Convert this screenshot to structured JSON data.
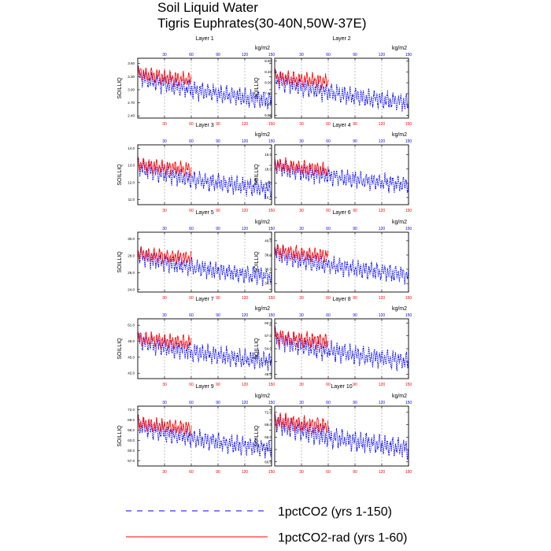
{
  "title": "Soil Liquid Water",
  "subtitle": "Tigris Euphrates(30-40N,50W-37E)",
  "legend": [
    {
      "label": "1pctCO2 (yrs 1-150)",
      "color": "#0000ff",
      "style": "dashed"
    },
    {
      "label": "1pctCO2-rad (yrs 1-60)",
      "color": "#ff0000",
      "style": "solid"
    }
  ],
  "colors": {
    "series_a": "#0000ff",
    "series_b": "#ff0000",
    "grid": "#999999"
  },
  "chart_data": {
    "type": "line",
    "ylabel": "SOILLIQ",
    "units": "kg/m2",
    "x_ticks_top": [
      "30",
      "60",
      "90",
      "120",
      "150"
    ],
    "x_ticks_bottom": [
      "30",
      "60",
      "90",
      "120",
      "150"
    ],
    "xlim": [
      0,
      150
    ],
    "panels": [
      {
        "title": "Layer 1",
        "yticks": [
          "2.40",
          "2.70",
          "3.00",
          "3.30",
          "3.60"
        ],
        "ylim": [
          2.35,
          3.72
        ],
        "series": [
          {
            "label_ref": 0,
            "start": 3.35,
            "end": 2.75,
            "amp": 0.22
          },
          {
            "label_ref": 1,
            "start": 3.4,
            "end": 3.1,
            "amp": 0.18
          }
        ]
      },
      {
        "title": "Layer 2",
        "yticks": [
          "6.80",
          "7.20",
          "7.60",
          "8.00",
          "8.40",
          "8.80"
        ],
        "ylim": [
          6.7,
          8.9
        ],
        "series": [
          {
            "label_ref": 0,
            "start": 8.2,
            "end": 7.25,
            "amp": 0.35
          },
          {
            "label_ref": 1,
            "start": 8.25,
            "end": 7.9,
            "amp": 0.28
          }
        ]
      },
      {
        "title": "Layer 3",
        "yticks": [
          "11.0",
          "12.0",
          "13.0",
          "14.0"
        ],
        "ylim": [
          10.7,
          14.2
        ],
        "series": [
          {
            "label_ref": 0,
            "start": 13.0,
            "end": 11.6,
            "amp": 0.55
          },
          {
            "label_ref": 1,
            "start": 13.1,
            "end": 12.5,
            "amp": 0.45
          }
        ]
      },
      {
        "title": "Layer 4",
        "yticks": [
          "16.0",
          "17.0",
          "18.0",
          "19.0"
        ],
        "ylim": [
          15.5,
          19.7
        ],
        "series": [
          {
            "label_ref": 0,
            "start": 18.3,
            "end": 16.9,
            "amp": 0.65
          },
          {
            "label_ref": 1,
            "start": 18.4,
            "end": 17.6,
            "amp": 0.55
          }
        ]
      },
      {
        "title": "Layer 5",
        "yticks": [
          "24.0",
          "26.0",
          "28.0",
          "30.0"
        ],
        "ylim": [
          23.7,
          30.8
        ],
        "series": [
          {
            "label_ref": 0,
            "start": 28.2,
            "end": 25.5,
            "amp": 1.1
          },
          {
            "label_ref": 1,
            "start": 28.4,
            "end": 27.2,
            "amp": 0.9
          }
        ]
      },
      {
        "title": "Layer 6",
        "yticks": [
          "34.0",
          "36.0",
          "38.0",
          "40.0"
        ],
        "ylim": [
          32.8,
          41.2
        ],
        "series": [
          {
            "label_ref": 0,
            "start": 38.5,
            "end": 35.2,
            "amp": 1.3
          },
          {
            "label_ref": 1,
            "start": 38.7,
            "end": 37.3,
            "amp": 1.1
          }
        ]
      },
      {
        "title": "Layer 7",
        "yticks": [
          "42.0",
          "45.0",
          "48.0",
          "51.0"
        ],
        "ylim": [
          41.0,
          52.2
        ],
        "series": [
          {
            "label_ref": 0,
            "start": 48.5,
            "end": 44.2,
            "amp": 1.8
          },
          {
            "label_ref": 1,
            "start": 48.8,
            "end": 46.8,
            "amp": 1.5
          }
        ]
      },
      {
        "title": "Layer 8",
        "yticks": [
          "48.0",
          "51.0",
          "54.0",
          "57.0",
          "60.0"
        ],
        "ylim": [
          47.0,
          61.0
        ],
        "series": [
          {
            "label_ref": 0,
            "start": 57.0,
            "end": 51.0,
            "amp": 2.4
          },
          {
            "label_ref": 1,
            "start": 57.2,
            "end": 54.5,
            "amp": 2.0
          }
        ]
      },
      {
        "title": "Layer 9",
        "yticks": [
          "57.0",
          "60.0",
          "63.0",
          "66.0",
          "69.0",
          "72.0"
        ],
        "ylim": [
          55.5,
          73.0
        ],
        "series": [
          {
            "label_ref": 0,
            "start": 68.0,
            "end": 60.5,
            "amp": 2.8
          },
          {
            "label_ref": 1,
            "start": 68.3,
            "end": 65.2,
            "amp": 2.3
          }
        ]
      },
      {
        "title": "Layer 10",
        "yticks": [
          "60.0",
          "63.0",
          "66.0",
          "69.0",
          "72.0"
        ],
        "ylim": [
          59.0,
          73.5
        ],
        "series": [
          {
            "label_ref": 0,
            "start": 70.0,
            "end": 63.2,
            "amp": 2.6
          },
          {
            "label_ref": 1,
            "start": 70.3,
            "end": 67.5,
            "amp": 2.1
          }
        ]
      }
    ],
    "series_years": [
      150,
      60
    ]
  }
}
